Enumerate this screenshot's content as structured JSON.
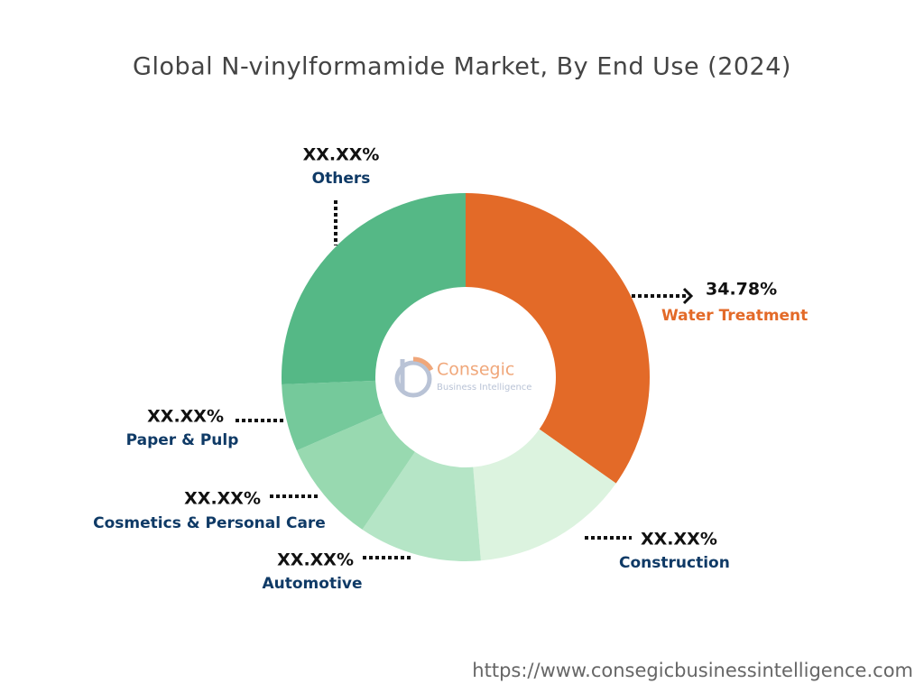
{
  "chart_data": {
    "type": "donut",
    "title": "Global N-vinylformamide Market, By End Use (2024)",
    "categories": [
      "Water Treatment",
      "Construction",
      "Automotive",
      "Cosmetics & Personal Care",
      "Paper & Pulp",
      "Others"
    ],
    "values": [
      34.78,
      13.9,
      10.8,
      9.0,
      5.9,
      25.62
    ],
    "value_labels": [
      "34.78%",
      "XX.XX%",
      "XX.XX%",
      "XX.XX%",
      "XX.XX%",
      "XX.XX%"
    ],
    "colors": [
      "#e36a28",
      "#dcf3df",
      "#b5e5c6",
      "#98d9b0",
      "#75c99b",
      "#55b886"
    ]
  },
  "logo": {
    "name": "Consegic",
    "tagline": "Business Intelligence"
  },
  "source_url": "https://www.consegicbusinessintelligence.com"
}
